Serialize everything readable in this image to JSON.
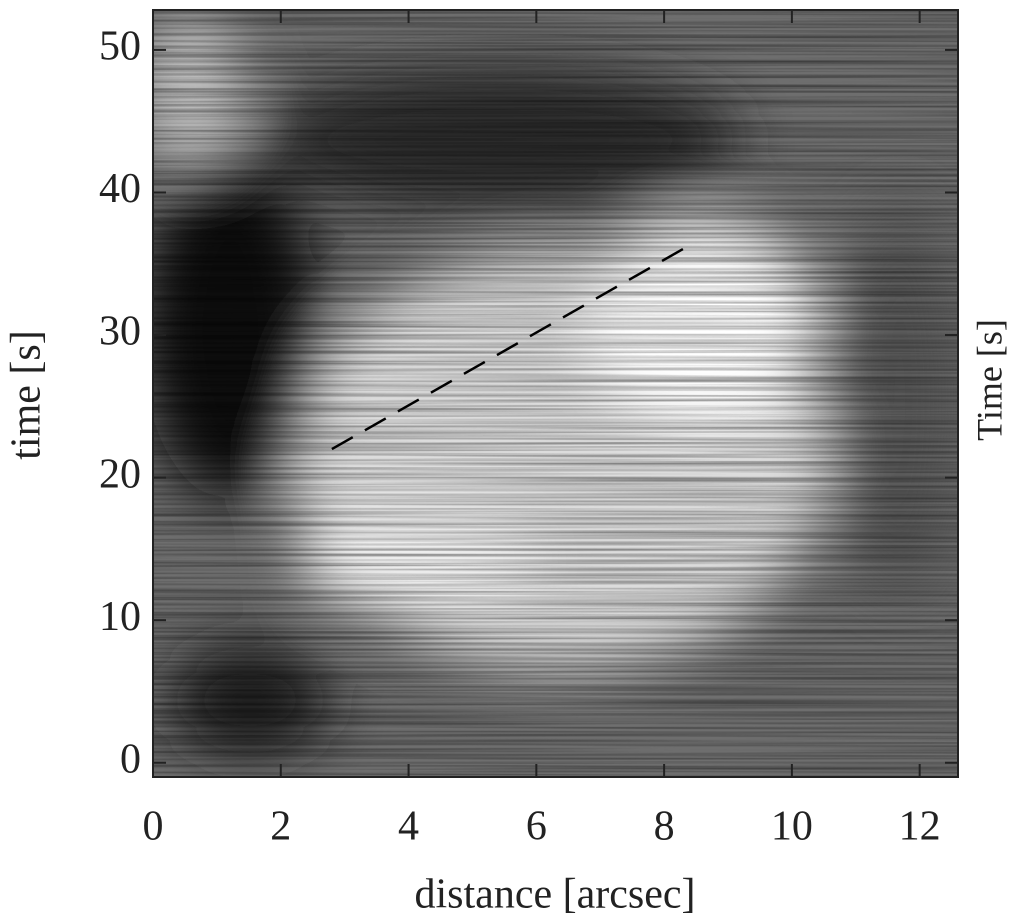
{
  "chart_data": {
    "type": "line",
    "x_label": "distance [arcsec]",
    "y_label": "time [s]",
    "right_label": "Time [s]",
    "x": [
      2.8,
      8.4
    ],
    "series": [
      {
        "color": "#000000",
        "dashed": true,
        "values": [
          22,
          36.3
        ]
      }
    ],
    "xlim": [
      0,
      12.6
    ],
    "ylim": [
      -1,
      52.8
    ],
    "xticks": [
      0,
      2,
      4,
      6,
      8,
      10,
      12
    ],
    "yticks": [
      0,
      10,
      20,
      30,
      40,
      50
    ]
  }
}
